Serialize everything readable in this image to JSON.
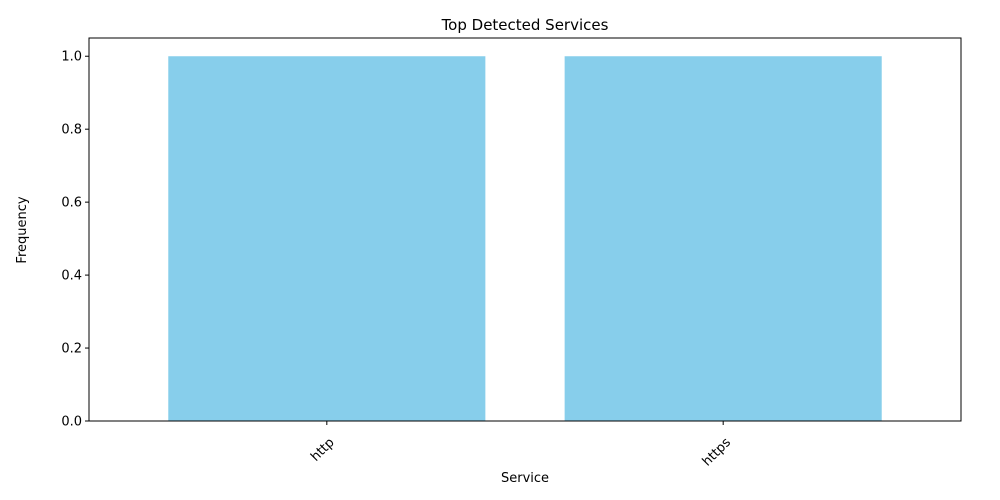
{
  "chart_data": {
    "type": "bar",
    "title": "Top Detected Services",
    "xlabel": "Service",
    "ylabel": "Frequency",
    "categories": [
      "http",
      "https"
    ],
    "values": [
      1,
      1
    ],
    "ylim": [
      0,
      1.05
    ],
    "yticks": [
      "0.0",
      "0.2",
      "0.4",
      "0.6",
      "0.8",
      "1.0"
    ],
    "ytick_values": [
      0.0,
      0.2,
      0.4,
      0.6,
      0.8,
      1.0
    ],
    "xtick_rotation_deg": 45,
    "bar_color": "#87CEEB",
    "grid": false,
    "legend": "none"
  }
}
